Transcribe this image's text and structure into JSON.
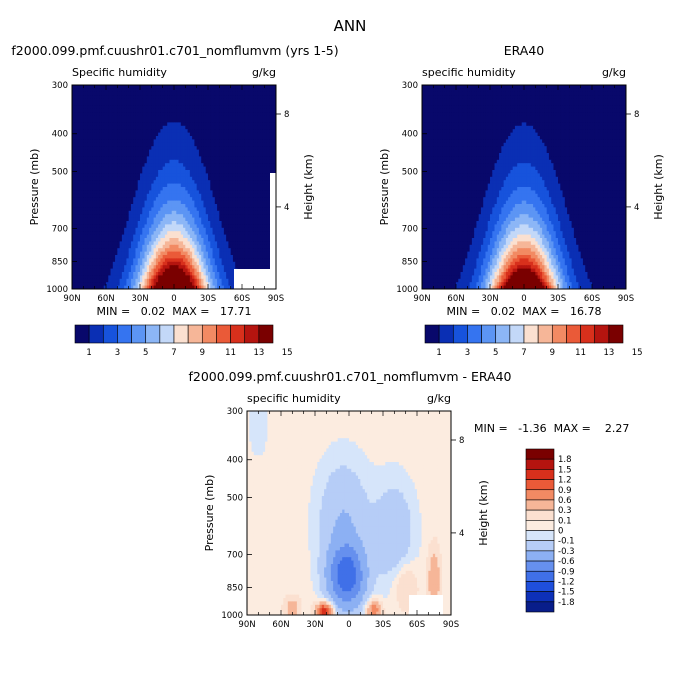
{
  "page_title": "ANN",
  "panels": [
    {
      "title": "f2000.099.pmf.cuushr01.c701_nomflumvm (yrs 1-5)",
      "left_label": "Specific humidity",
      "right_label": "g/kg",
      "stats": "MIN =   0.02  MAX =   17.71"
    },
    {
      "title": "ERA40",
      "left_label": "specific humidity",
      "right_label": "g/kg",
      "stats": "MIN =   0.02  MAX =   16.78"
    },
    {
      "title": "f2000.099.pmf.cuushr01.c701_nomflumvm - ERA40",
      "left_label": "specific humidity",
      "right_label": "g/kg",
      "stats": "MIN =   -1.36  MAX =    2.27"
    }
  ],
  "axes": {
    "ylabel": "Pressure (mb)",
    "y2label": "Height (km)",
    "pressure_ticks": [
      "300",
      "400",
      "500",
      "700",
      "850",
      "1000"
    ],
    "height_ticks": [
      "8",
      "4"
    ],
    "lat_ticks": [
      "90N",
      "60N",
      "30N",
      "0",
      "30S",
      "60S",
      "90S"
    ]
  },
  "colors": {
    "abs_scale": [
      "#08086b",
      "#0a2fb4",
      "#1753dc",
      "#3574f0",
      "#5c95f4",
      "#8cb6f6",
      "#c3d8f8",
      "#fbe0d0",
      "#f6b698",
      "#f28a63",
      "#ea5a38",
      "#d8301c",
      "#b5140f",
      "#7a0000"
    ],
    "abs_labels": [
      "1",
      "3",
      "5",
      "7",
      "9",
      "11",
      "13",
      "15"
    ],
    "diff_scale": [
      "#7a0000",
      "#b5140f",
      "#d8301c",
      "#ea5a38",
      "#f28a63",
      "#f6b698",
      "#fbe0d0",
      "#fcece0",
      "#d6e5fa",
      "#b6cdf7",
      "#8cb0f3",
      "#6690ee",
      "#4070e8",
      "#1f4fdc",
      "#0d30b8",
      "#081d8a"
    ],
    "diff_labels": [
      "1.8",
      "1.5",
      "1.2",
      "0.9",
      "0.6",
      "0.3",
      "0.1",
      "0",
      "-0.1",
      "-0.3",
      "-0.6",
      "-0.9",
      "-1.2",
      "-1.5",
      "-1.8"
    ]
  },
  "chart_data": [
    {
      "type": "heatmap",
      "title": "f2000.099.pmf.cuushr01.c701_nomflumvm (yrs 1-5)",
      "variable": "Specific humidity",
      "units": "g/kg",
      "xlabel": "",
      "ylabel": "Pressure (mb)",
      "y2label": "Height (km)",
      "x": [
        "90N",
        "60N",
        "30N",
        "0",
        "30S",
        "60S",
        "90S"
      ],
      "y_pressure_mb": [
        1000,
        850,
        700,
        500,
        400,
        300
      ],
      "contour_levels": [
        1,
        2,
        3,
        4,
        5,
        6,
        7,
        8,
        9,
        10,
        11,
        12,
        13,
        14,
        15
      ],
      "min": 0.02,
      "max": 17.71
    },
    {
      "type": "heatmap",
      "title": "ERA40",
      "variable": "specific humidity",
      "units": "g/kg",
      "xlabel": "",
      "ylabel": "Pressure (mb)",
      "y2label": "Height (km)",
      "x": [
        "90N",
        "60N",
        "30N",
        "0",
        "30S",
        "60S",
        "90S"
      ],
      "y_pressure_mb": [
        1000,
        850,
        700,
        500,
        400,
        300
      ],
      "contour_levels": [
        1,
        2,
        3,
        4,
        5,
        6,
        7,
        8,
        9,
        10,
        11,
        12,
        13,
        14,
        15
      ],
      "min": 0.02,
      "max": 16.78
    },
    {
      "type": "heatmap",
      "title": "f2000.099.pmf.cuushr01.c701_nomflumvm - ERA40",
      "variable": "specific humidity",
      "units": "g/kg",
      "xlabel": "",
      "ylabel": "Pressure (mb)",
      "y2label": "Height (km)",
      "x": [
        "90N",
        "60N",
        "30N",
        "0",
        "30S",
        "60S",
        "90S"
      ],
      "y_pressure_mb": [
        1000,
        850,
        700,
        500,
        400,
        300
      ],
      "contour_levels": [
        -1.8,
        -1.5,
        -1.2,
        -0.9,
        -0.6,
        -0.3,
        -0.1,
        0,
        0.1,
        0.3,
        0.6,
        0.9,
        1.2,
        1.5,
        1.8
      ],
      "min": -1.36,
      "max": 2.27
    }
  ]
}
